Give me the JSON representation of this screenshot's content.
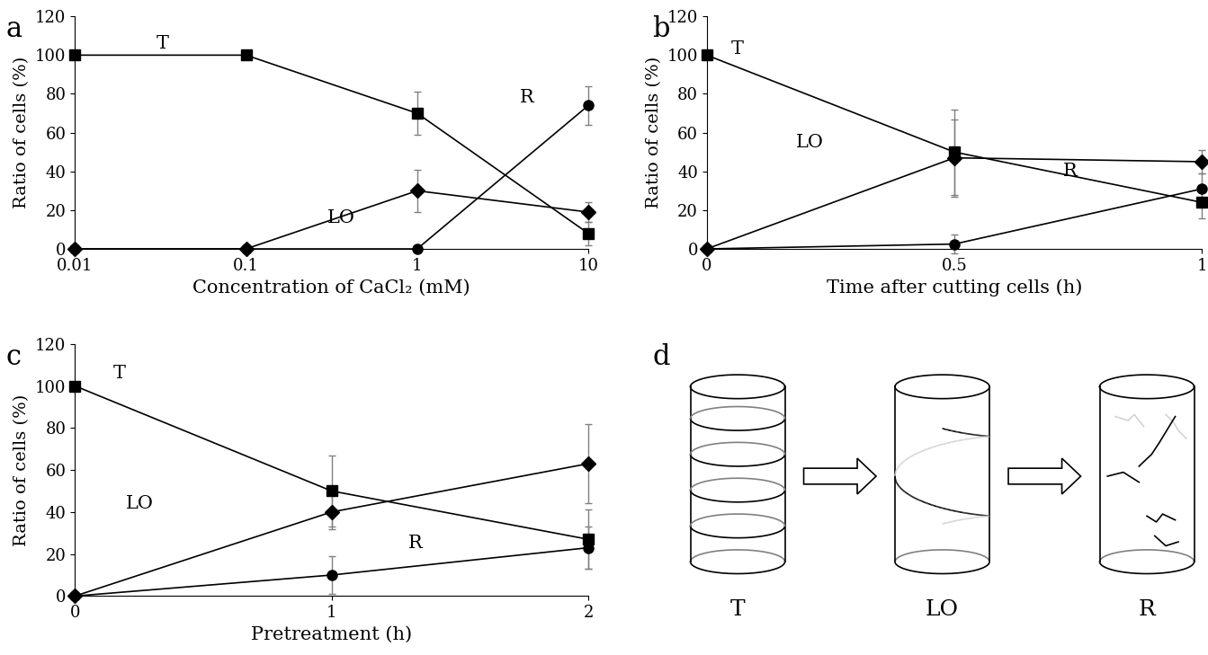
{
  "chart_data": [
    {
      "type": "line",
      "title": "a",
      "log": "x",
      "x_label": "Concentration of CaCl₂ (mM)",
      "y_label": "Ratio of cells (%)",
      "x": [
        0.01,
        0.1,
        1,
        10
      ],
      "xlim": [
        0.01,
        10
      ],
      "xticks": [
        0.01,
        0.1,
        1,
        10
      ],
      "ylim": [
        0,
        120
      ],
      "yticks": [
        0,
        20,
        40,
        60,
        80,
        100,
        120
      ],
      "series": [
        {
          "name": "T",
          "color": "#000000",
          "marker": "square",
          "values": [
            100,
            100,
            70,
            8
          ],
          "errors": [
            0,
            0,
            11,
            6
          ]
        },
        {
          "name": "LO",
          "color": "#000000",
          "marker": "diamond",
          "values": [
            0,
            0,
            30,
            19
          ],
          "errors": [
            0,
            0,
            11,
            5
          ]
        },
        {
          "name": "R",
          "color": "#000000",
          "marker": "circle",
          "values": [
            0,
            0,
            0,
            74
          ],
          "errors": [
            0,
            0,
            0,
            10
          ]
        }
      ]
    },
    {
      "type": "line",
      "title": "b",
      "x_label": "Time after cutting cells (h)",
      "y_label": "Ratio of cells (%)",
      "x": [
        0,
        0.5,
        1
      ],
      "xlim": [
        0,
        1
      ],
      "xticks": [
        0,
        0.5,
        1
      ],
      "ylim": [
        0,
        120
      ],
      "yticks": [
        0,
        20,
        40,
        60,
        80,
        100,
        120
      ],
      "series": [
        {
          "name": "T",
          "color": "#000000",
          "marker": "square",
          "values": [
            100,
            50,
            24
          ],
          "errors": [
            0,
            22,
            8
          ]
        },
        {
          "name": "LO",
          "color": "#000000",
          "marker": "diamond",
          "values": [
            0,
            47,
            45
          ],
          "errors": [
            0,
            20,
            6
          ]
        },
        {
          "name": "R",
          "color": "#000000",
          "marker": "circle",
          "values": [
            0,
            2.5,
            31
          ],
          "errors": [
            0,
            5,
            8
          ]
        }
      ]
    },
    {
      "type": "line",
      "title": "c",
      "x_label": "Pretreatment (h)",
      "y_label": "Ratio of cells (%)",
      "x": [
        0,
        1,
        2
      ],
      "xlim": [
        0,
        2
      ],
      "xticks": [
        0,
        1,
        2
      ],
      "ylim": [
        0,
        120
      ],
      "yticks": [
        0,
        20,
        40,
        60,
        80,
        100,
        120
      ],
      "series": [
        {
          "name": "T",
          "color": "#000000",
          "marker": "square",
          "values": [
            100,
            50,
            27
          ],
          "errors": [
            0,
            17,
            14
          ]
        },
        {
          "name": "LO",
          "color": "#000000",
          "marker": "diamond",
          "values": [
            0,
            40,
            63
          ],
          "errors": [
            0,
            8,
            19
          ]
        },
        {
          "name": "R",
          "color": "#000000",
          "marker": "circle",
          "values": [
            0,
            10,
            23
          ],
          "errors": [
            0,
            9,
            10
          ]
        }
      ]
    }
  ],
  "diagram": {
    "title": "d",
    "stages": [
      "T",
      "LO",
      "R"
    ]
  }
}
